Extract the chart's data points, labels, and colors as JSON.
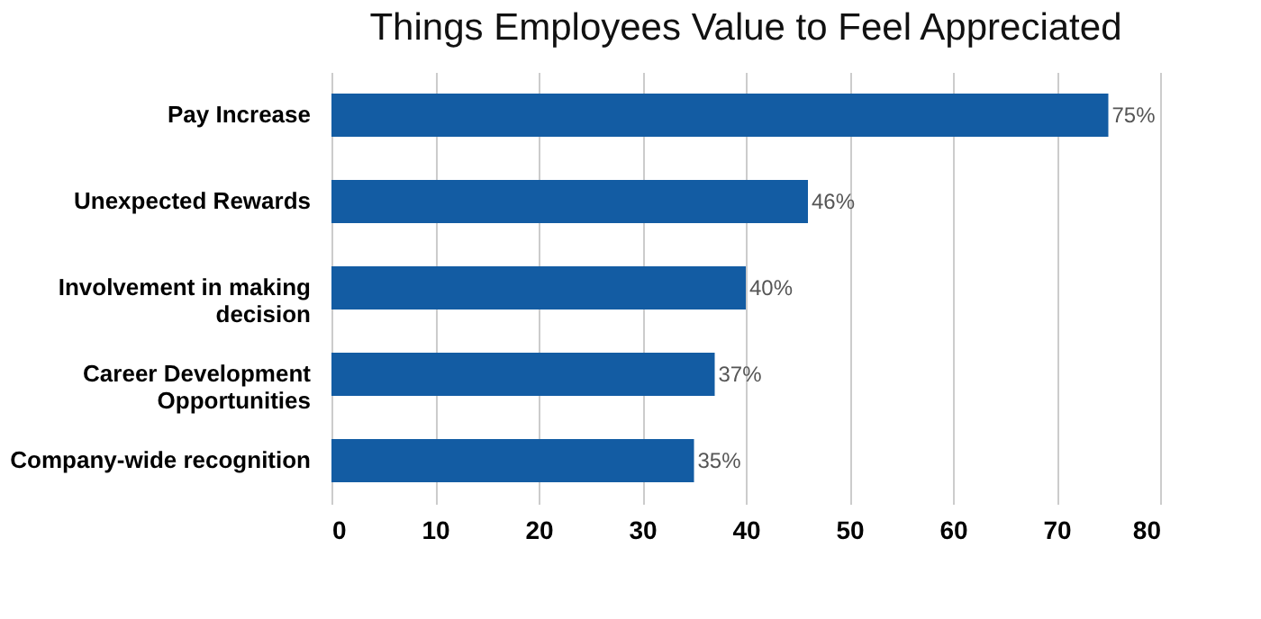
{
  "chart_data": {
    "type": "bar",
    "orientation": "horizontal",
    "title": "Things Employees Value to Feel Appreciated",
    "categories": [
      "Pay Increase",
      "Unexpected Rewards",
      "Involvement in making decision",
      "Career Development Opportunities",
      "Company-wide recognition"
    ],
    "values": [
      75,
      46,
      40,
      37,
      35
    ],
    "value_labels": [
      "75%",
      "46%",
      "40%",
      "37%",
      "35%"
    ],
    "color": "#135ca3",
    "xlim": [
      0,
      80
    ],
    "xticks": [
      0,
      10,
      20,
      30,
      40,
      50,
      60,
      70,
      80
    ],
    "grid": "x"
  }
}
